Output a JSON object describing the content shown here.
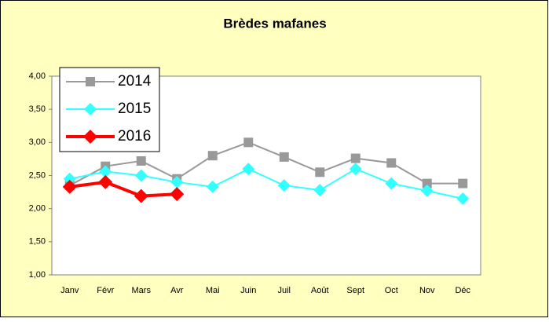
{
  "chart_data": {
    "type": "line",
    "title": "Brèdes mafanes",
    "categories": [
      "Janv",
      "Févr",
      "Mars",
      "Avr",
      "Mai",
      "Juin",
      "Juil",
      "Août",
      "Sept",
      "Oct",
      "Nov",
      "Déc"
    ],
    "series": [
      {
        "name": "2014",
        "color": "#999999",
        "values": [
          2.35,
          2.64,
          2.72,
          2.45,
          2.8,
          3.0,
          2.78,
          2.55,
          2.76,
          2.69,
          2.38,
          2.38
        ]
      },
      {
        "name": "2015",
        "color": "#33ffff",
        "values": [
          2.45,
          2.56,
          2.5,
          2.4,
          2.33,
          2.6,
          2.35,
          2.28,
          2.6,
          2.38,
          2.27,
          2.15
        ]
      },
      {
        "name": "2016",
        "color": "#ff0000",
        "values": [
          2.33,
          2.4,
          2.19,
          2.22,
          null,
          null,
          null,
          null,
          null,
          null,
          null,
          null
        ]
      }
    ],
    "ylim": [
      1,
      4
    ],
    "yticks": [
      {
        "value": 1,
        "label": "1,00"
      },
      {
        "value": 1.5,
        "label": "1,50"
      },
      {
        "value": 2,
        "label": "2,00"
      },
      {
        "value": 2.5,
        "label": "2,50"
      },
      {
        "value": 3,
        "label": "3,00"
      },
      {
        "value": 3.5,
        "label": "3,50"
      },
      {
        "value": 4,
        "label": "4,00"
      }
    ],
    "grid": false,
    "legend": "upper left"
  }
}
